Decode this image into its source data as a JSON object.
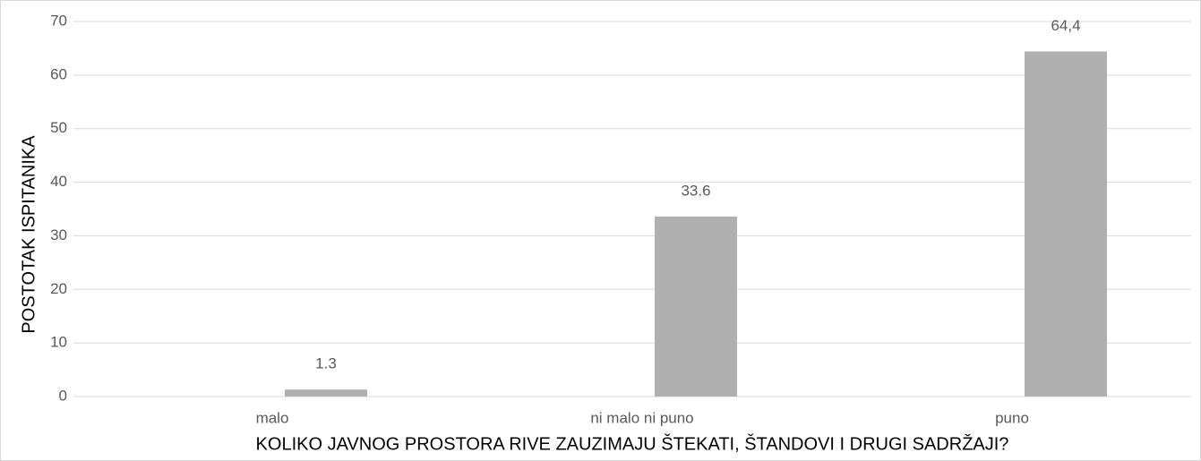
{
  "chart_data": {
    "type": "bar",
    "x_label": "KOLIKO JAVNOG PROSTORA RIVE ZAUZIMAJU ŠTEKATI, ŠTANDOVI I DRUGI SADRŽAJI?",
    "y_label": "POSTOTAK ISPITANIKA",
    "categories": [
      "malo",
      "ni malo ni puno",
      "puno"
    ],
    "values": [
      1.3,
      33.6,
      64.4
    ],
    "value_labels": [
      "1.3",
      "33.6",
      "64,4"
    ],
    "color": "#b0b0b0",
    "ylim": [
      0,
      70
    ],
    "yticks": [
      0,
      10,
      20,
      30,
      40,
      50,
      60,
      70
    ],
    "grid": true
  }
}
